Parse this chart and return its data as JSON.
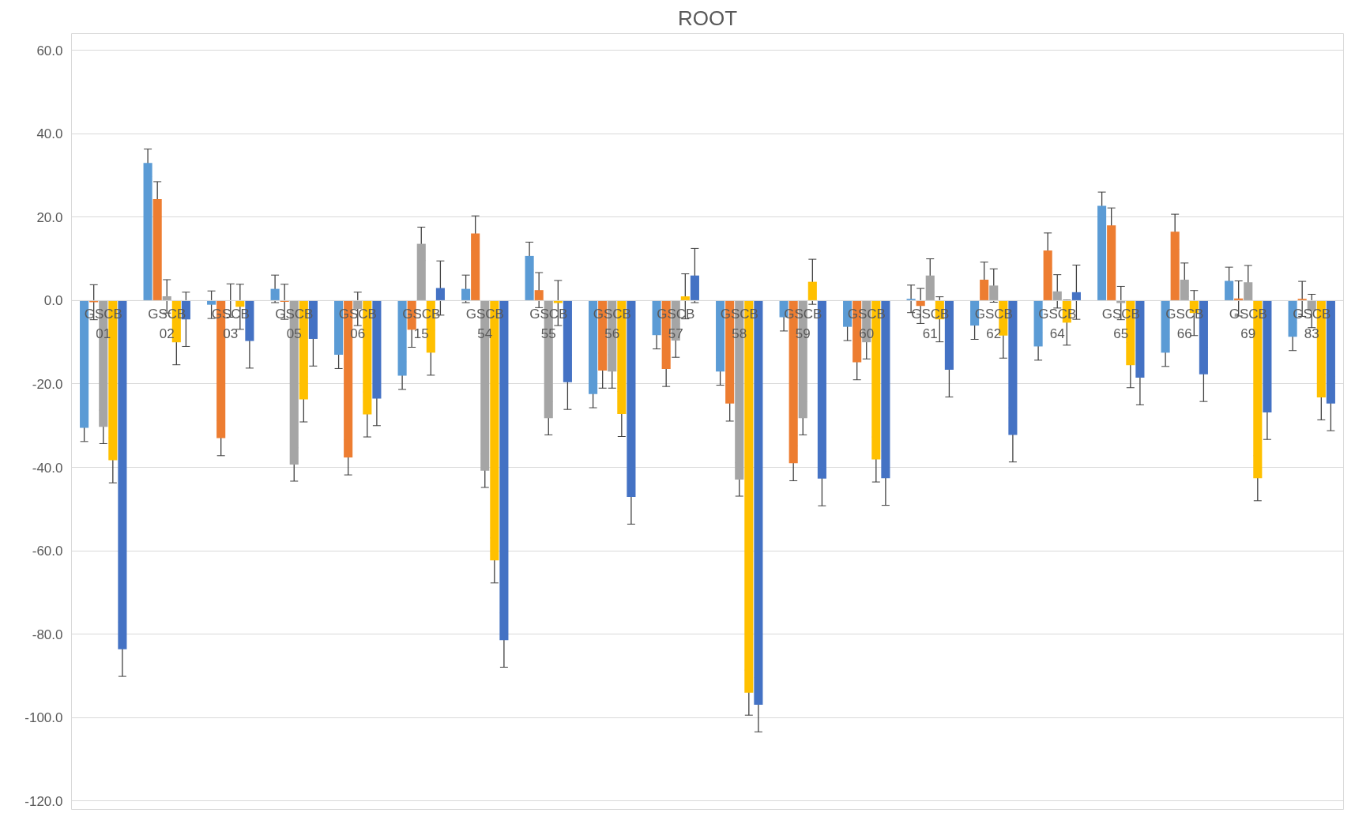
{
  "chart_data": {
    "type": "bar",
    "title": "ROOT",
    "categories": [
      "GSCB 01",
      "GSCB 02",
      "GSCB 03",
      "GSCB 05",
      "GSCB 06",
      "GSCB 15",
      "GSCB 54",
      "GSCB 55",
      "GSCB 56",
      "GSCB 57",
      "GSCB 58",
      "GSCB 59",
      "GSCB 60",
      "GSCB 61",
      "GSCB 62",
      "GSCB 64",
      "GSCB 65",
      "GSCB 66",
      "GSCB 69",
      "GSCB 83"
    ],
    "series": [
      {
        "color": "#5b9bd5",
        "values": [
          -30.5,
          33.0,
          -1.0,
          2.8,
          -13.0,
          -18.0,
          2.8,
          10.7,
          -22.4,
          -8.3,
          -17.0,
          -4.0,
          -6.3,
          0.4,
          -6.0,
          -11.0,
          22.7,
          -12.5,
          4.7,
          -8.7
        ],
        "errors": [
          3.3,
          3.3,
          3.3,
          3.3,
          3.3,
          3.3,
          3.3,
          3.3,
          3.3,
          3.3,
          3.3,
          3.3,
          3.3,
          3.3,
          3.3,
          3.3,
          3.3,
          3.3,
          3.3,
          3.3
        ]
      },
      {
        "color": "#ed7d31",
        "values": [
          -0.4,
          24.3,
          -33.0,
          -0.3,
          -37.6,
          -7.0,
          16.1,
          2.5,
          -16.8,
          -16.4,
          -24.7,
          -39.0,
          -14.8,
          -1.3,
          5.0,
          12.0,
          18.0,
          16.5,
          0.5,
          0.4
        ],
        "errors": [
          4.2,
          4.2,
          4.2,
          4.2,
          4.2,
          4.2,
          4.2,
          4.2,
          4.2,
          4.2,
          4.2,
          4.2,
          4.2,
          4.2,
          4.2,
          4.2,
          4.2,
          4.2,
          4.2,
          4.2
        ]
      },
      {
        "color": "#a5a5a5",
        "values": [
          -30.3,
          1.0,
          0.0,
          -39.3,
          -2.0,
          13.6,
          -40.8,
          -28.2,
          -17.0,
          -9.6,
          -42.9,
          -28.2,
          -10.0,
          6.0,
          3.6,
          2.2,
          -0.6,
          5.0,
          4.4,
          -2.5
        ],
        "errors": [
          4.0,
          4.0,
          4.0,
          4.0,
          4.0,
          4.0,
          4.0,
          4.0,
          4.0,
          4.0,
          4.0,
          4.0,
          4.0,
          4.0,
          4.0,
          4.0,
          4.0,
          4.0,
          4.0,
          4.0
        ]
      },
      {
        "color": "#ffc000",
        "values": [
          -38.3,
          -10.0,
          -1.5,
          -23.7,
          -27.3,
          -12.5,
          -62.3,
          -0.6,
          -27.2,
          1.0,
          -94.0,
          4.5,
          -38.1,
          -4.5,
          -8.4,
          -5.3,
          -15.5,
          -3.0,
          -42.6,
          -23.2
        ],
        "errors": [
          5.4,
          5.4,
          5.4,
          5.4,
          5.4,
          5.4,
          5.4,
          5.4,
          5.4,
          5.4,
          5.4,
          5.4,
          5.4,
          5.4,
          5.4,
          5.4,
          5.4,
          5.4,
          5.4,
          5.4
        ]
      },
      {
        "color": "#4472c4",
        "values": [
          -83.6,
          -4.5,
          -9.7,
          -9.2,
          -23.5,
          3.0,
          -81.4,
          -19.6,
          -47.1,
          6.0,
          -96.9,
          -42.7,
          -42.6,
          -16.6,
          -32.2,
          2.0,
          -18.5,
          -17.7,
          -26.8,
          -24.7
        ],
        "errors": [
          6.5,
          6.5,
          6.5,
          6.5,
          6.5,
          6.5,
          6.5,
          6.5,
          6.5,
          6.5,
          6.5,
          6.5,
          6.5,
          6.5,
          6.5,
          6.5,
          6.5,
          6.5,
          6.5,
          6.5
        ]
      }
    ],
    "ylim": [
      -122,
      64
    ],
    "yticks": [
      {
        "value": -120,
        "label": "-120.0"
      },
      {
        "value": -100,
        "label": "-100.0"
      },
      {
        "value": -80,
        "label": "-80.0"
      },
      {
        "value": -60,
        "label": "-60.0"
      },
      {
        "value": -40,
        "label": "-40.0"
      },
      {
        "value": -20,
        "label": "-20.0"
      },
      {
        "value": 0,
        "label": "0.0"
      },
      {
        "value": 20,
        "label": "20.0"
      },
      {
        "value": 40,
        "label": "40.0"
      },
      {
        "value": 60,
        "label": "60.0"
      }
    ],
    "grid": "y"
  }
}
